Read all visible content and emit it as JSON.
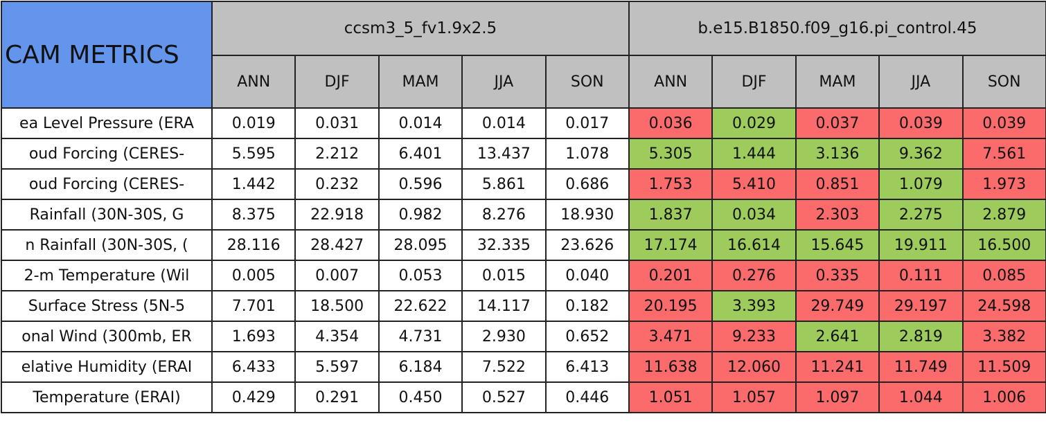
{
  "table": {
    "title": "CAM METRICS",
    "groups": [
      {
        "name": "ccsm3_5_fv1.9x2.5",
        "seasons": [
          "ANN",
          "DJF",
          "MAM",
          "JJA",
          "SON"
        ],
        "color": "#c0c0c0"
      },
      {
        "name": "b.e15.B1850.f09_g16.pi_control.45",
        "seasons": [
          "ANN",
          "DJF",
          "MAM",
          "JJA",
          "SON"
        ],
        "color": "#c0c0c0"
      }
    ],
    "rows": [
      {
        "label": "ea Level Pressure (ERA",
        "values": [
          "0.019",
          "0.031",
          "0.014",
          "0.014",
          "0.017",
          "0.036",
          "0.029",
          "0.037",
          "0.039",
          "0.039"
        ],
        "colors": [
          "#fb6b6b",
          "#9dcc5c",
          "#fb6b6b",
          "#fb6b6b",
          "#fb6b6b"
        ]
      },
      {
        "label": "oud Forcing (CERES-",
        "values": [
          "5.595",
          "2.212",
          "6.401",
          "13.437",
          "1.078",
          "5.305",
          "1.444",
          "3.136",
          "9.362",
          "7.561"
        ],
        "colors": [
          "#9dcc5c",
          "#9dcc5c",
          "#9dcc5c",
          "#9dcc5c",
          "#fb6b6b"
        ]
      },
      {
        "label": "oud Forcing (CERES-",
        "values": [
          "1.442",
          "0.232",
          "0.596",
          "5.861",
          "0.686",
          "1.753",
          "5.410",
          "0.851",
          "1.079",
          "1.973"
        ],
        "colors": [
          "#fb6b6b",
          "#fb6b6b",
          "#fb6b6b",
          "#9dcc5c",
          "#fb6b6b"
        ]
      },
      {
        "label": "Rainfall (30N-30S, G",
        "values": [
          "8.375",
          "22.918",
          "0.982",
          "8.276",
          "18.930",
          "1.837",
          "0.034",
          "2.303",
          "2.275",
          "2.879"
        ],
        "colors": [
          "#9dcc5c",
          "#9dcc5c",
          "#fb6b6b",
          "#9dcc5c",
          "#9dcc5c"
        ]
      },
      {
        "label": "n Rainfall (30N-30S, (",
        "values": [
          "28.116",
          "28.427",
          "28.095",
          "32.335",
          "23.626",
          "17.174",
          "16.614",
          "15.645",
          "19.911",
          "16.500"
        ],
        "colors": [
          "#9dcc5c",
          "#9dcc5c",
          "#9dcc5c",
          "#9dcc5c",
          "#9dcc5c"
        ]
      },
      {
        "label": "2-m Temperature (Wil",
        "values": [
          "0.005",
          "0.007",
          "0.053",
          "0.015",
          "0.040",
          "0.201",
          "0.276",
          "0.335",
          "0.111",
          "0.085"
        ],
        "colors": [
          "#fb6b6b",
          "#fb6b6b",
          "#fb6b6b",
          "#fb6b6b",
          "#fb6b6b"
        ]
      },
      {
        "label": "Surface Stress (5N-5",
        "values": [
          "7.701",
          "18.500",
          "22.622",
          "14.117",
          "0.182",
          "20.195",
          "3.393",
          "29.749",
          "29.197",
          "24.598"
        ],
        "colors": [
          "#fb6b6b",
          "#9dcc5c",
          "#fb6b6b",
          "#fb6b6b",
          "#fb6b6b"
        ]
      },
      {
        "label": "onal Wind (300mb, ER",
        "values": [
          "1.693",
          "4.354",
          "4.731",
          "2.930",
          "0.652",
          "3.471",
          "9.233",
          "2.641",
          "2.819",
          "3.382"
        ],
        "colors": [
          "#fb6b6b",
          "#fb6b6b",
          "#9dcc5c",
          "#9dcc5c",
          "#fb6b6b"
        ]
      },
      {
        "label": "elative Humidity (ERAI",
        "values": [
          "6.433",
          "5.597",
          "6.184",
          "7.522",
          "6.413",
          "11.638",
          "12.060",
          "11.241",
          "11.749",
          "11.509"
        ],
        "colors": [
          "#fb6b6b",
          "#fb6b6b",
          "#fb6b6b",
          "#fb6b6b",
          "#fb6b6b"
        ]
      },
      {
        "label": "Temperature (ERAI)",
        "values": [
          "0.429",
          "0.291",
          "0.450",
          "0.527",
          "0.446",
          "1.051",
          "1.057",
          "1.097",
          "1.044",
          "1.006"
        ],
        "colors": [
          "#fb6b6b",
          "#fb6b6b",
          "#fb6b6b",
          "#fb6b6b",
          "#fb6b6b"
        ]
      }
    ]
  }
}
